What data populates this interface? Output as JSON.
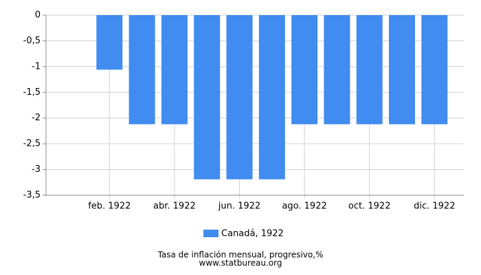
{
  "chart_data": {
    "type": "bar",
    "title": "Tasa de inflación mensual, progresivo,%",
    "subtitle": "www.statbureau.org",
    "categories": [
      null,
      "feb. 1922",
      null,
      "abr. 1922",
      null,
      "jun. 1922",
      null,
      "ago. 1922",
      null,
      "oct. 1922",
      null,
      "dic. 1922"
    ],
    "series": [
      {
        "name": "Canadá, 1922",
        "color": "#418cf0",
        "values": [
          0,
          -1.06,
          -2.12,
          -2.12,
          -3.19,
          -3.19,
          -3.19,
          -2.12,
          -2.12,
          -2.12,
          -2.12,
          -2.12
        ]
      }
    ],
    "ylim": [
      -3.5,
      0
    ],
    "yticks": [
      0,
      {
        "value": -0.5,
        "label": "-0,5"
      },
      -1,
      {
        "value": -1.5,
        "label": "-1,5"
      },
      -2,
      {
        "value": -2.5,
        "label": "-2,5"
      },
      -3,
      {
        "value": -3.5,
        "label": "-3,5"
      }
    ],
    "grid": true
  }
}
